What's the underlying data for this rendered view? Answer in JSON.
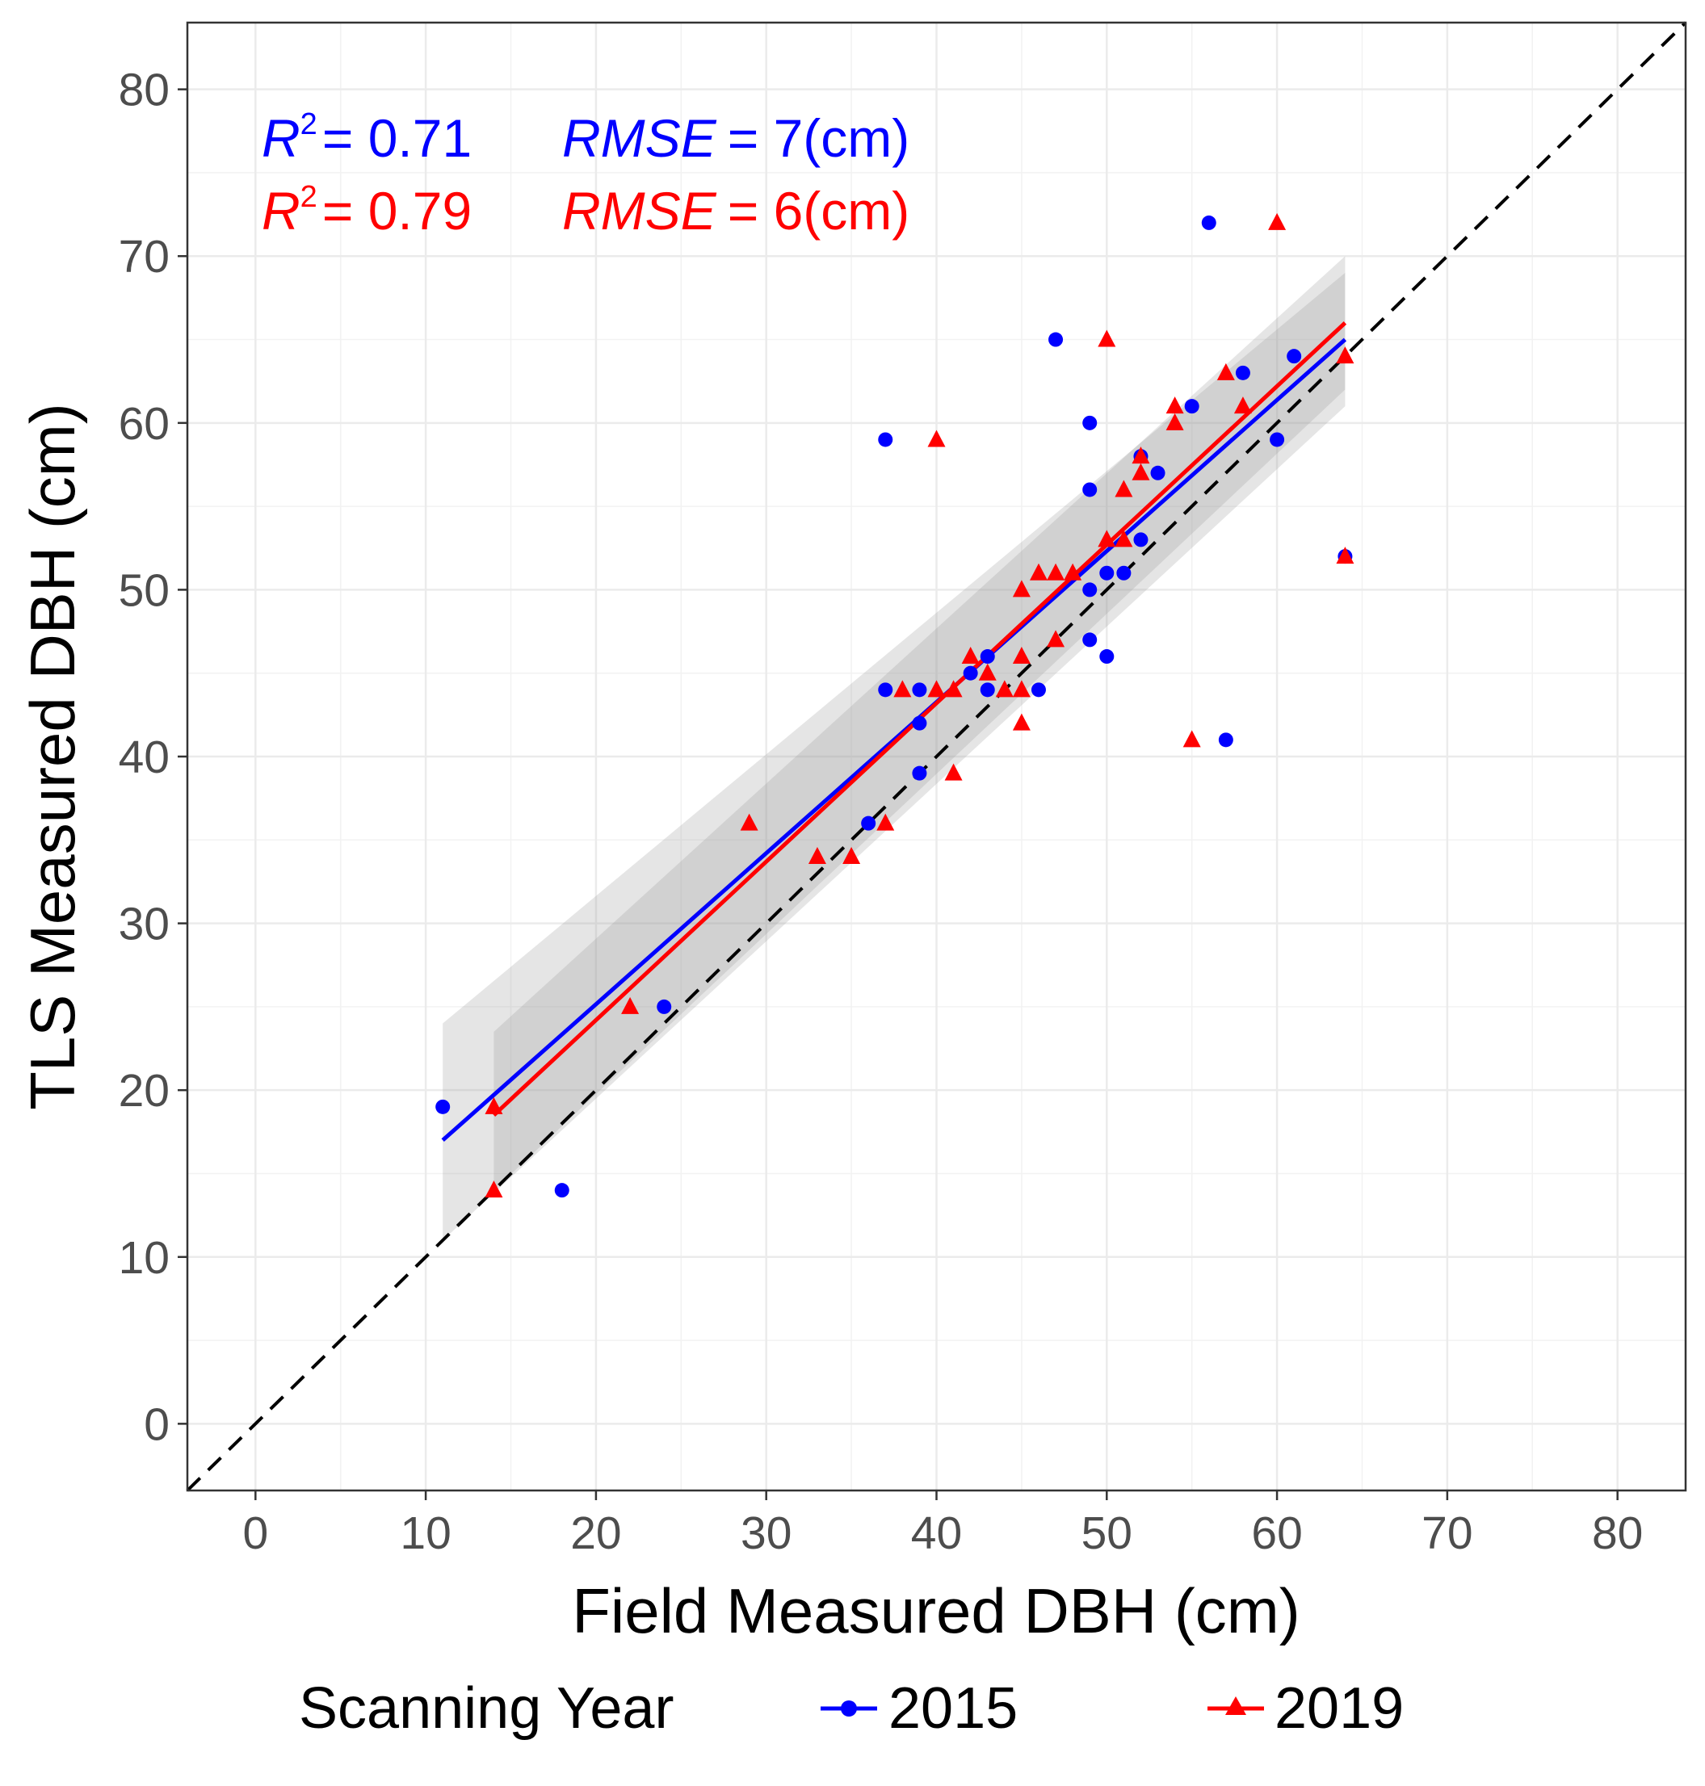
{
  "chart_data": {
    "type": "scatter",
    "title": "",
    "xlabel": "Field Measured DBH (cm)",
    "ylabel": "TLS Measured DBH (cm)",
    "xlim": [
      -4,
      84
    ],
    "ylim": [
      -4,
      84
    ],
    "x_ticks": [
      0,
      10,
      20,
      30,
      40,
      50,
      60,
      70,
      80
    ],
    "y_ticks": [
      0,
      10,
      20,
      30,
      40,
      50,
      60,
      70,
      80
    ],
    "x_tick_labels": [
      "0",
      "10",
      "20",
      "30",
      "40",
      "50",
      "60",
      "70",
      "80"
    ],
    "y_tick_labels": [
      "0",
      "10",
      "20",
      "30",
      "40",
      "50",
      "60",
      "70",
      "80"
    ],
    "grid": true,
    "reference_line": {
      "type": "1:1",
      "style": "dashed",
      "color": "#000000"
    },
    "legend": {
      "title": "Scanning  Year",
      "placement": "bottom"
    },
    "annotations": [
      {
        "r2_symbol": "R",
        "r2_exp": "2",
        "r2_text": "= 0.71",
        "rmse_symbol": "RMSE",
        "rmse_text": "= 7(cm)",
        "color": "#0000ff"
      },
      {
        "r2_symbol": "R",
        "r2_exp": "2",
        "r2_text": "= 0.79",
        "rmse_symbol": "RMSE",
        "rmse_text": "= 6(cm)",
        "color": "#ff0000"
      }
    ],
    "series": [
      {
        "name": "2015",
        "marker": "circle",
        "color": "#0000ff",
        "fit": {
          "x": [
            11,
            64
          ],
          "y": [
            17,
            65
          ],
          "ci_lower": [
            11,
            61
          ],
          "ci_upper": [
            24,
            69
          ]
        },
        "x": [
          11,
          18,
          24,
          36,
          37,
          37,
          39,
          39,
          39,
          42,
          43,
          43,
          46,
          47,
          49,
          49,
          49,
          49,
          50,
          50,
          51,
          52,
          52,
          53,
          55,
          56,
          57,
          58,
          60,
          61,
          64
        ],
        "y": [
          19,
          14,
          25,
          36,
          59,
          44,
          44,
          42,
          39,
          45,
          46,
          44,
          44,
          65,
          60,
          56,
          50,
          47,
          51,
          46,
          51,
          58,
          53,
          57,
          61,
          72,
          41,
          63,
          59,
          64,
          52
        ]
      },
      {
        "name": "2019",
        "marker": "triangle",
        "color": "#ff0000",
        "fit": {
          "x": [
            14,
            64
          ],
          "y": [
            18.5,
            66
          ],
          "ci_lower": [
            14,
            62
          ],
          "ci_upper": [
            23.5,
            70
          ]
        },
        "x": [
          14,
          14,
          22,
          29,
          33,
          35,
          37,
          38,
          40,
          40,
          41,
          41,
          42,
          43,
          44,
          45,
          45,
          45,
          45,
          46,
          47,
          47,
          48,
          50,
          50,
          51,
          51,
          52,
          52,
          54,
          54,
          55,
          57,
          58,
          60,
          64,
          64
        ],
        "y": [
          19,
          14,
          25,
          36,
          34,
          34,
          36,
          44,
          59,
          44,
          44,
          39,
          46,
          45,
          44,
          50,
          46,
          44,
          42,
          51,
          51,
          47,
          51,
          65,
          53,
          56,
          53,
          58,
          57,
          61,
          60,
          41,
          63,
          61,
          72,
          64,
          52
        ]
      }
    ]
  }
}
